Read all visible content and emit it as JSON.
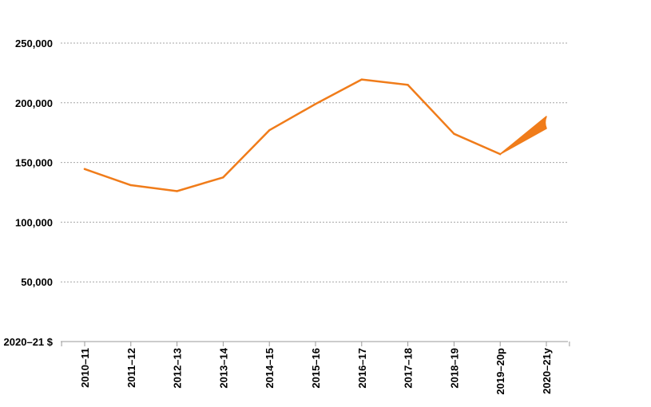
{
  "chart_data": {
    "type": "line",
    "title": "",
    "xlabel": "",
    "ylabel": "2020–21 $",
    "categories": [
      "2010–11",
      "2011–12",
      "2012–13",
      "2013–14",
      "2014–15",
      "2015–16",
      "2016–17",
      "2017–18",
      "2018–19",
      "2019–20p",
      "2020–21y"
    ],
    "series": [
      {
        "values": [
          144500,
          131000,
          126000,
          137500,
          177000,
          199000,
          219500,
          215000,
          174000,
          157000,
          null
        ]
      }
    ],
    "projection_range": {
      "from_category": "2019–20p",
      "to_category": "2020–21y",
      "start": 157000,
      "low": 178500,
      "high": 188500
    },
    "yticks": [
      50000,
      100000,
      150000,
      200000,
      250000
    ],
    "ytick_labels": [
      "50,000",
      "100,000",
      "150,000",
      "200,000",
      "250,000"
    ],
    "ylim": [
      0,
      250000
    ],
    "grid": true,
    "legend": "none",
    "line_color": "#f07c1a",
    "projection_fill_color": "#f07c1a"
  }
}
